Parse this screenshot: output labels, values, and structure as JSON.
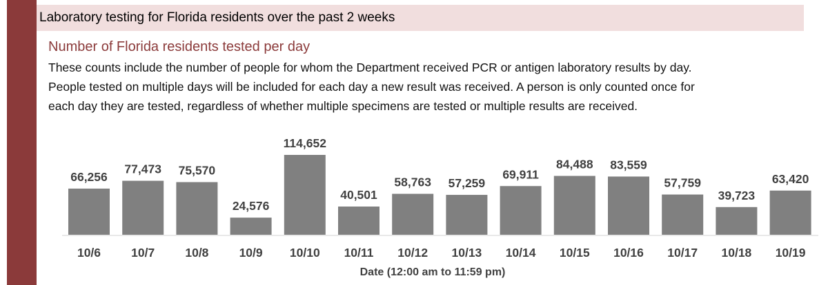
{
  "header": {
    "title": "Laboratory testing for Florida residents over the past 2 weeks"
  },
  "chart_title": "Number of Florida residents tested per day",
  "description": [
    "These counts include the number of people for whom the Department received PCR or antigen laboratory results by day.",
    "People tested on multiple days will be included for each day a new result was received. A person is only counted once for",
    "each day they are tested, regardless of whether multiple specimens are tested or multiple results are received."
  ],
  "colors": {
    "accent": "#8b3a3a",
    "header_band": "#f1dede",
    "bar": "#808080"
  },
  "chart_data": {
    "type": "bar",
    "categories": [
      "10/6",
      "10/7",
      "10/8",
      "10/9",
      "10/10",
      "10/11",
      "10/12",
      "10/13",
      "10/14",
      "10/15",
      "10/16",
      "10/17",
      "10/18",
      "10/19"
    ],
    "values": [
      66256,
      77473,
      75570,
      24576,
      114652,
      40501,
      58763,
      57259,
      69911,
      84488,
      83559,
      57759,
      39723,
      63420
    ],
    "value_labels": [
      "66,256",
      "77,473",
      "75,570",
      "24,576",
      "114,652",
      "40,501",
      "58,763",
      "57,259",
      "69,911",
      "84,488",
      "83,559",
      "57,759",
      "39,723",
      "63,420"
    ],
    "title": "Number of Florida residents tested per day",
    "xlabel": "Date (12:00 am to 11:59 pm)",
    "ylabel": "",
    "ylim": [
      0,
      114652
    ],
    "grid": false
  }
}
